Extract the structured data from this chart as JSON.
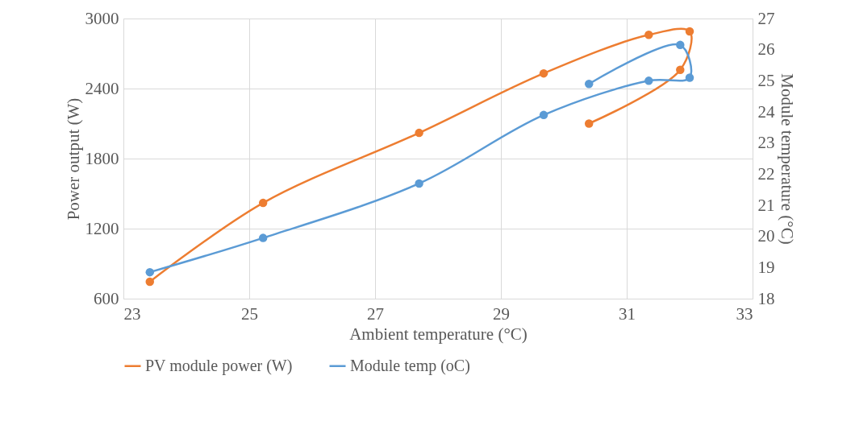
{
  "chart_data": {
    "type": "line",
    "xlabel": "Ambient temperature (°C)",
    "ylabel": "Power output (W)",
    "y2label": "Module temperature (°C)",
    "xlim": [
      23,
      33
    ],
    "xticks": [
      23,
      25,
      27,
      29,
      31,
      33
    ],
    "ylim": [
      600,
      3000
    ],
    "yticks": [
      600,
      1200,
      1800,
      2400,
      3000
    ],
    "y2lim": [
      18,
      27
    ],
    "y2ticks": [
      18,
      19,
      20,
      21,
      22,
      23,
      24,
      25,
      26,
      27
    ],
    "grid": true,
    "legend": "bottom",
    "marker": "circle",
    "line_style": "solid",
    "series": [
      {
        "name": "PV module power (W)",
        "color": "#ed7d31",
        "x": [
          23.42,
          25.22,
          27.7,
          29.68,
          31.35,
          32.0,
          31.85,
          30.4
        ],
        "values": [
          745,
          1420,
          2020,
          2530,
          2860,
          2890,
          2560,
          2100
        ]
      },
      {
        "name": "Module temp (oC)",
        "color": "#5b9bd5",
        "axis": "y2",
        "x": [
          23.42,
          25.22,
          27.7,
          29.68,
          31.35,
          32.0,
          31.85,
          30.4
        ],
        "values": [
          18.85,
          19.95,
          21.7,
          23.9,
          25.0,
          25.1,
          26.15,
          24.9
        ]
      }
    ]
  }
}
